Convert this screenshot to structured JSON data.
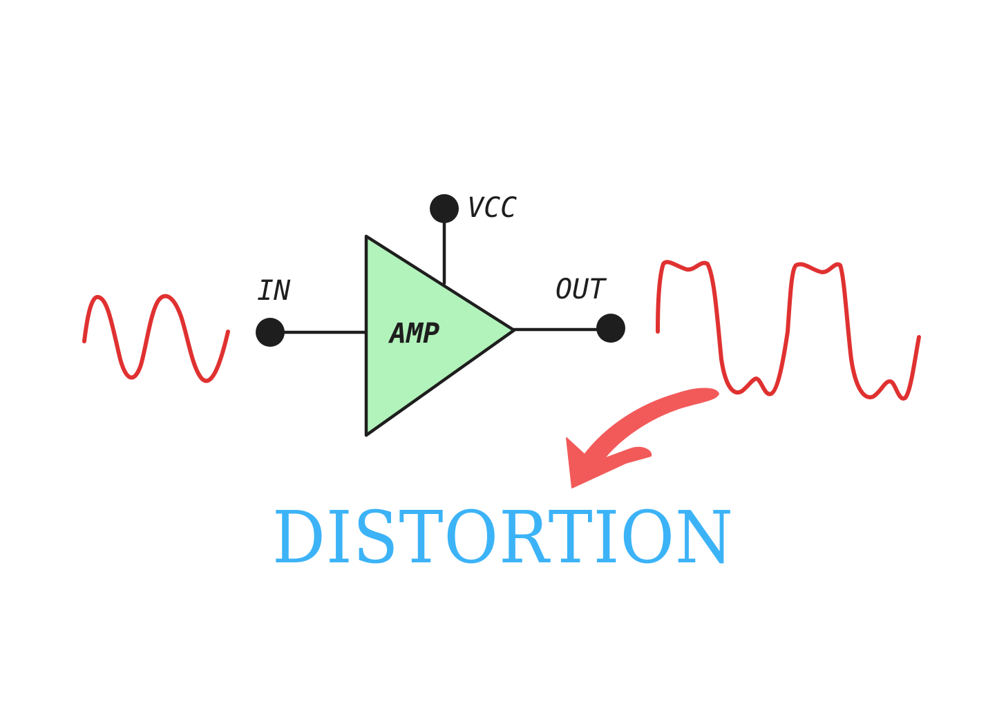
{
  "labels": {
    "input": "IN",
    "supply": "VCC",
    "output": "OUT",
    "amplifier": "AMP"
  },
  "caption": "DISTORTION",
  "colors": {
    "wave": "#e03131",
    "arrow": "#f25a5a",
    "amplifier_fill": "#b2f2bb",
    "stroke": "#1e1e1e",
    "caption": "#3cb3f7"
  }
}
